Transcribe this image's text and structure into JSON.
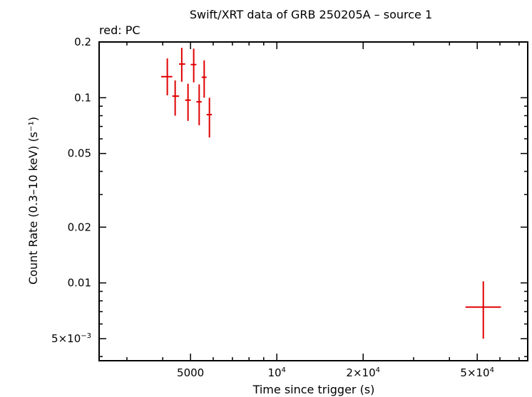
{
  "chart_data": {
    "type": "scatter",
    "title": "Swift/XRT data of GRB 250205A – source 1",
    "subtitle": "red: PC",
    "xlabel": "Time since trigger (s)",
    "ylabel": "Count Rate (0.3–10 keV) (s⁻¹)",
    "x_scale": "log",
    "y_scale": "log",
    "xlim": [
      2400,
      75000
    ],
    "ylim": [
      0.0038,
      0.2
    ],
    "x_ticks": [
      {
        "value": 5000,
        "mant": "5000",
        "exp": ""
      },
      {
        "value": 10000,
        "mant": "10",
        "exp": "4"
      },
      {
        "value": 20000,
        "mant": "2×10",
        "exp": "4"
      },
      {
        "value": 50000,
        "mant": "5×10",
        "exp": "4"
      }
    ],
    "y_ticks": [
      {
        "value": 0.2,
        "mant": "0.2",
        "exp": ""
      },
      {
        "value": 0.1,
        "mant": "0.1",
        "exp": ""
      },
      {
        "value": 0.05,
        "mant": "0.05",
        "exp": ""
      },
      {
        "value": 0.02,
        "mant": "0.02",
        "exp": ""
      },
      {
        "value": 0.01,
        "mant": "0.01",
        "exp": ""
      },
      {
        "value": 0.005,
        "mant": "5×10",
        "exp": "−3"
      }
    ],
    "series": [
      {
        "name": "PC",
        "color": "#e00000",
        "points": [
          {
            "x": 4150,
            "xlo": 3950,
            "xhi": 4320,
            "y": 0.13,
            "ylo": 0.103,
            "yhi": 0.163
          },
          {
            "x": 4420,
            "xlo": 4320,
            "xhi": 4560,
            "y": 0.102,
            "ylo": 0.08,
            "yhi": 0.124
          },
          {
            "x": 4660,
            "xlo": 4560,
            "xhi": 4790,
            "y": 0.152,
            "ylo": 0.122,
            "yhi": 0.186
          },
          {
            "x": 4900,
            "xlo": 4790,
            "xhi": 5010,
            "y": 0.097,
            "ylo": 0.075,
            "yhi": 0.119
          },
          {
            "x": 5130,
            "xlo": 5010,
            "xhi": 5240,
            "y": 0.151,
            "ylo": 0.121,
            "yhi": 0.184
          },
          {
            "x": 5360,
            "xlo": 5240,
            "xhi": 5470,
            "y": 0.095,
            "ylo": 0.071,
            "yhi": 0.118
          },
          {
            "x": 5580,
            "xlo": 5470,
            "xhi": 5690,
            "y": 0.129,
            "ylo": 0.1,
            "yhi": 0.159
          },
          {
            "x": 5820,
            "xlo": 5690,
            "xhi": 5940,
            "y": 0.081,
            "ylo": 0.061,
            "yhi": 0.1
          },
          {
            "x": 52500,
            "xlo": 45500,
            "xhi": 60500,
            "y": 0.0074,
            "ylo": 0.005,
            "yhi": 0.0102
          }
        ]
      }
    ]
  }
}
